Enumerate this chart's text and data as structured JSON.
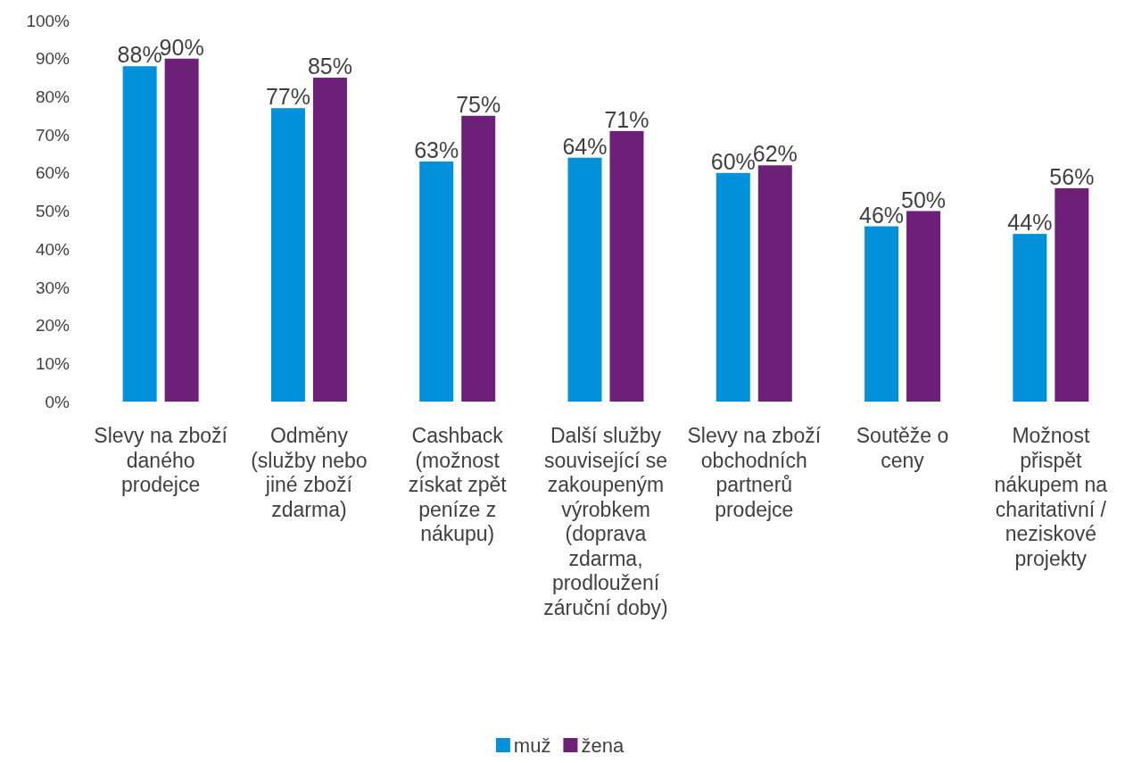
{
  "chart_data": {
    "type": "bar",
    "categories": [
      "Slevy na zboží daného prodejce",
      "Odměny (služby nebo jiné zboží zdarma)",
      "Cashback (možnost získat zpět peníze z nákupu)",
      "Další služby související se zakoupeným výrobkem (doprava zdarma, prodloužení záruční doby)",
      "Slevy na zboží obchodních partnerů prodejce",
      "Soutěže o ceny",
      "Možnost přispět nákupem na charitativní / neziskové projekty"
    ],
    "series": [
      {
        "name": "muž",
        "color": "#0091da",
        "values": [
          88,
          77,
          63,
          64,
          60,
          46,
          44
        ],
        "value_labels": [
          "88%",
          "77%",
          "63%",
          "64%",
          "60%",
          "46%",
          "44%"
        ]
      },
      {
        "name": "žena",
        "color": "#6c2077",
        "values": [
          90,
          85,
          75,
          71,
          62,
          50,
          56
        ],
        "value_labels": [
          "90%",
          "85%",
          "75%",
          "71%",
          "62%",
          "50%",
          "56%"
        ]
      }
    ],
    "ylim": [
      0,
      100
    ],
    "yticks": [
      {
        "value": 0,
        "label": "0%"
      },
      {
        "value": 10,
        "label": "10%"
      },
      {
        "value": 20,
        "label": "20%"
      },
      {
        "value": 30,
        "label": "30%"
      },
      {
        "value": 40,
        "label": "40%"
      },
      {
        "value": 50,
        "label": "50%"
      },
      {
        "value": 60,
        "label": "60%"
      },
      {
        "value": 70,
        "label": "70%"
      },
      {
        "value": 80,
        "label": "80%"
      },
      {
        "value": 90,
        "label": "90%"
      },
      {
        "value": 100,
        "label": "100%"
      }
    ],
    "grid": false,
    "legend": "bottom"
  }
}
